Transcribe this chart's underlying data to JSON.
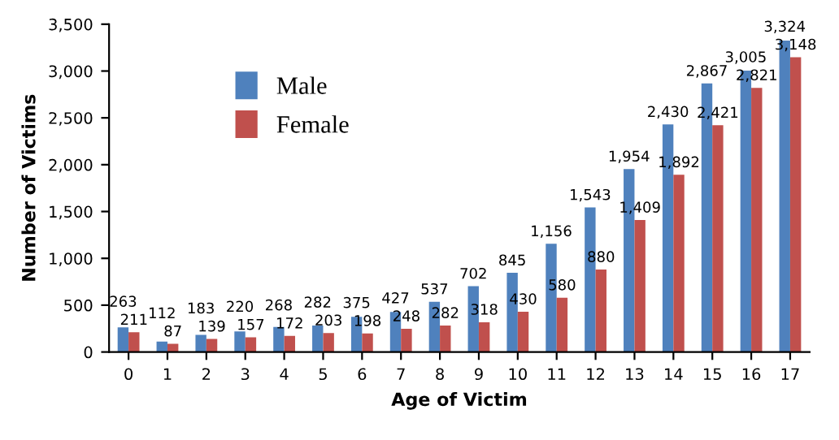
{
  "chart_data": {
    "type": "bar",
    "xlabel": "Age of Victim",
    "ylabel": "Number of Victims",
    "categories": [
      "0",
      "1",
      "2",
      "3",
      "4",
      "5",
      "6",
      "7",
      "8",
      "9",
      "10",
      "11",
      "12",
      "13",
      "14",
      "15",
      "16",
      "17"
    ],
    "series": [
      {
        "name": "Male",
        "color": "#4f81bd",
        "values": [
          263,
          112,
          183,
          220,
          268,
          282,
          375,
          427,
          537,
          702,
          845,
          1156,
          1543,
          1954,
          2430,
          2867,
          3005,
          3324
        ],
        "value_labels": [
          "263",
          "112",
          "183",
          "220",
          "268",
          "282",
          "375",
          "427",
          "537",
          "702",
          "845",
          "1,156",
          "1,543",
          "1,954",
          "2,430",
          "2,867",
          "3,005",
          "3,324"
        ]
      },
      {
        "name": "Female",
        "color": "#c0504d",
        "values": [
          211,
          87,
          139,
          157,
          172,
          203,
          198,
          248,
          282,
          318,
          430,
          580,
          880,
          1409,
          1892,
          2421,
          2821,
          3148
        ],
        "value_labels": [
          "211",
          "87",
          "139",
          "157",
          "172",
          "203",
          "198",
          "248",
          "282",
          "318",
          "430",
          "580",
          "880",
          "1,409",
          "1,892",
          "2,421",
          "2,821",
          "3,148"
        ]
      }
    ],
    "ylim": [
      0,
      3500
    ],
    "yticks": [
      0,
      500,
      {
        "value": 1000,
        "label": "1,000"
      },
      {
        "value": 1500,
        "label": "1,500"
      },
      {
        "value": 2000,
        "label": "2,000"
      },
      {
        "value": 2500,
        "label": "2,500"
      },
      {
        "value": 3000,
        "label": "3,000"
      },
      {
        "value": 3500,
        "label": "3,500"
      }
    ],
    "grid": false,
    "legend": "top left"
  }
}
